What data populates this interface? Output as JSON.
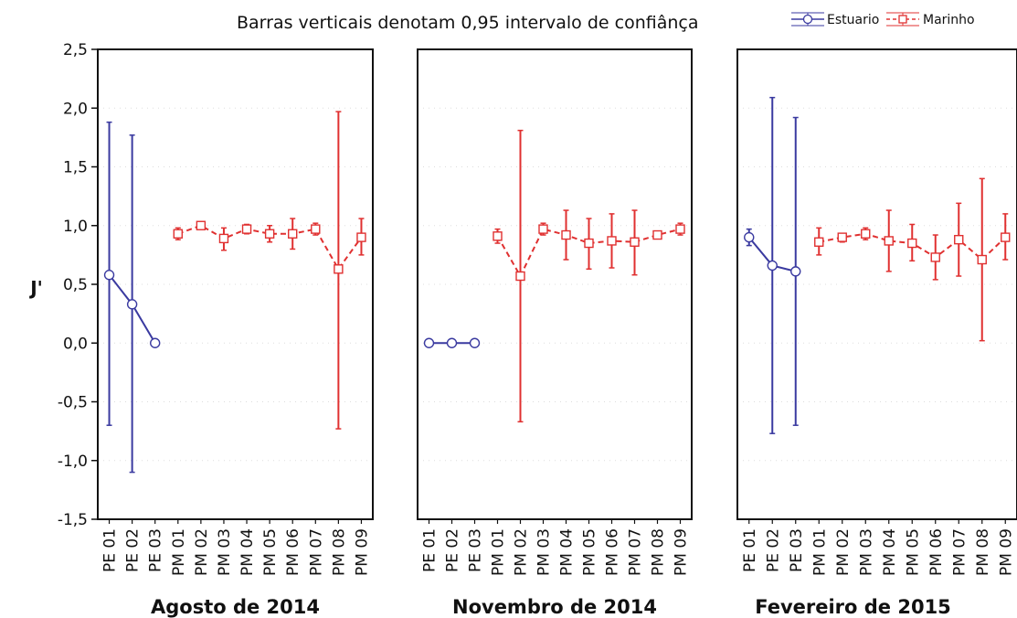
{
  "chart_data": {
    "type": "line",
    "legend_title": "Barras verticais denotam 0,95 intervalo de confiânça",
    "ylabel": "J'",
    "ylim": [
      -1.5,
      2.5
    ],
    "yticks": [
      "2,5",
      "2,0",
      "1,5",
      "1,0",
      "0,5",
      "0,0",
      "-0,5",
      "-1,0",
      "-1,5"
    ],
    "ytick_values": [
      2.5,
      2.0,
      1.5,
      1.0,
      0.5,
      0.0,
      -0.5,
      -1.0,
      -1.5
    ],
    "categories": [
      "PE 01",
      "PE 02",
      "PE 03",
      "PM 01",
      "PM 02",
      "PM 03",
      "PM 04",
      "PM 05",
      "PM 06",
      "PM 07",
      "PM 08",
      "PM 09"
    ],
    "legend": [
      {
        "name": "Estuario",
        "color": "#3a3aa0",
        "marker": "circle"
      },
      {
        "name": "Marinho",
        "color": "#e03030",
        "marker": "square"
      }
    ],
    "grid": true,
    "panels": [
      {
        "title": "Agosto de 2014",
        "series": [
          {
            "name": "Estuario",
            "points": [
              {
                "cat": "PE 01",
                "y": 0.58,
                "lo": -0.7,
                "hi": 1.88
              },
              {
                "cat": "PE 02",
                "y": 0.33,
                "lo": -1.1,
                "hi": 1.77
              },
              {
                "cat": "PE 03",
                "y": 0.0,
                "lo": 0.0,
                "hi": 0.0
              }
            ]
          },
          {
            "name": "Marinho",
            "points": [
              {
                "cat": "PM 01",
                "y": 0.93,
                "lo": 0.88,
                "hi": 0.98
              },
              {
                "cat": "PM 02",
                "y": 1.0,
                "lo": 1.0,
                "hi": 1.0
              },
              {
                "cat": "PM 03",
                "y": 0.89,
                "lo": 0.79,
                "hi": 0.98
              },
              {
                "cat": "PM 04",
                "y": 0.97,
                "lo": 0.93,
                "hi": 1.01
              },
              {
                "cat": "PM 05",
                "y": 0.93,
                "lo": 0.86,
                "hi": 1.0
              },
              {
                "cat": "PM 06",
                "y": 0.93,
                "lo": 0.8,
                "hi": 1.06
              },
              {
                "cat": "PM 07",
                "y": 0.97,
                "lo": 0.92,
                "hi": 1.02
              },
              {
                "cat": "PM 08",
                "y": 0.63,
                "lo": -0.73,
                "hi": 1.97
              },
              {
                "cat": "PM 09",
                "y": 0.9,
                "lo": 0.75,
                "hi": 1.06
              }
            ]
          }
        ]
      },
      {
        "title": "Novembro de 2014",
        "series": [
          {
            "name": "Estuario",
            "points": [
              {
                "cat": "PE 01",
                "y": 0.0,
                "lo": 0.0,
                "hi": 0.0
              },
              {
                "cat": "PE 02",
                "y": 0.0,
                "lo": 0.0,
                "hi": 0.0
              },
              {
                "cat": "PE 03",
                "y": 0.0,
                "lo": 0.0,
                "hi": 0.0
              }
            ]
          },
          {
            "name": "Marinho",
            "points": [
              {
                "cat": "PM 01",
                "y": 0.91,
                "lo": 0.85,
                "hi": 0.97
              },
              {
                "cat": "PM 02",
                "y": 0.57,
                "lo": -0.67,
                "hi": 1.81
              },
              {
                "cat": "PM 03",
                "y": 0.97,
                "lo": 0.92,
                "hi": 1.02
              },
              {
                "cat": "PM 04",
                "y": 0.92,
                "lo": 0.71,
                "hi": 1.13
              },
              {
                "cat": "PM 05",
                "y": 0.85,
                "lo": 0.63,
                "hi": 1.06
              },
              {
                "cat": "PM 06",
                "y": 0.87,
                "lo": 0.64,
                "hi": 1.1
              },
              {
                "cat": "PM 07",
                "y": 0.86,
                "lo": 0.58,
                "hi": 1.13
              },
              {
                "cat": "PM 08",
                "y": 0.92,
                "lo": 0.89,
                "hi": 0.95
              },
              {
                "cat": "PM 09",
                "y": 0.97,
                "lo": 0.92,
                "hi": 1.02
              }
            ]
          }
        ]
      },
      {
        "title": "Fevereiro de 2015",
        "series": [
          {
            "name": "Estuario",
            "points": [
              {
                "cat": "PE 01",
                "y": 0.9,
                "lo": 0.83,
                "hi": 0.97
              },
              {
                "cat": "PE 02",
                "y": 0.66,
                "lo": -0.77,
                "hi": 2.09
              },
              {
                "cat": "PE 03",
                "y": 0.61,
                "lo": -0.7,
                "hi": 1.92
              }
            ]
          },
          {
            "name": "Marinho",
            "points": [
              {
                "cat": "PM 01",
                "y": 0.86,
                "lo": 0.75,
                "hi": 0.98
              },
              {
                "cat": "PM 02",
                "y": 0.9,
                "lo": 0.86,
                "hi": 0.93
              },
              {
                "cat": "PM 03",
                "y": 0.93,
                "lo": 0.88,
                "hi": 0.98
              },
              {
                "cat": "PM 04",
                "y": 0.87,
                "lo": 0.61,
                "hi": 1.13
              },
              {
                "cat": "PM 05",
                "y": 0.85,
                "lo": 0.7,
                "hi": 1.01
              },
              {
                "cat": "PM 06",
                "y": 0.73,
                "lo": 0.54,
                "hi": 0.92
              },
              {
                "cat": "PM 07",
                "y": 0.88,
                "lo": 0.57,
                "hi": 1.19
              },
              {
                "cat": "PM 08",
                "y": 0.71,
                "lo": 0.02,
                "hi": 1.4
              },
              {
                "cat": "PM 09",
                "y": 0.9,
                "lo": 0.71,
                "hi": 1.1
              }
            ]
          }
        ]
      }
    ]
  }
}
